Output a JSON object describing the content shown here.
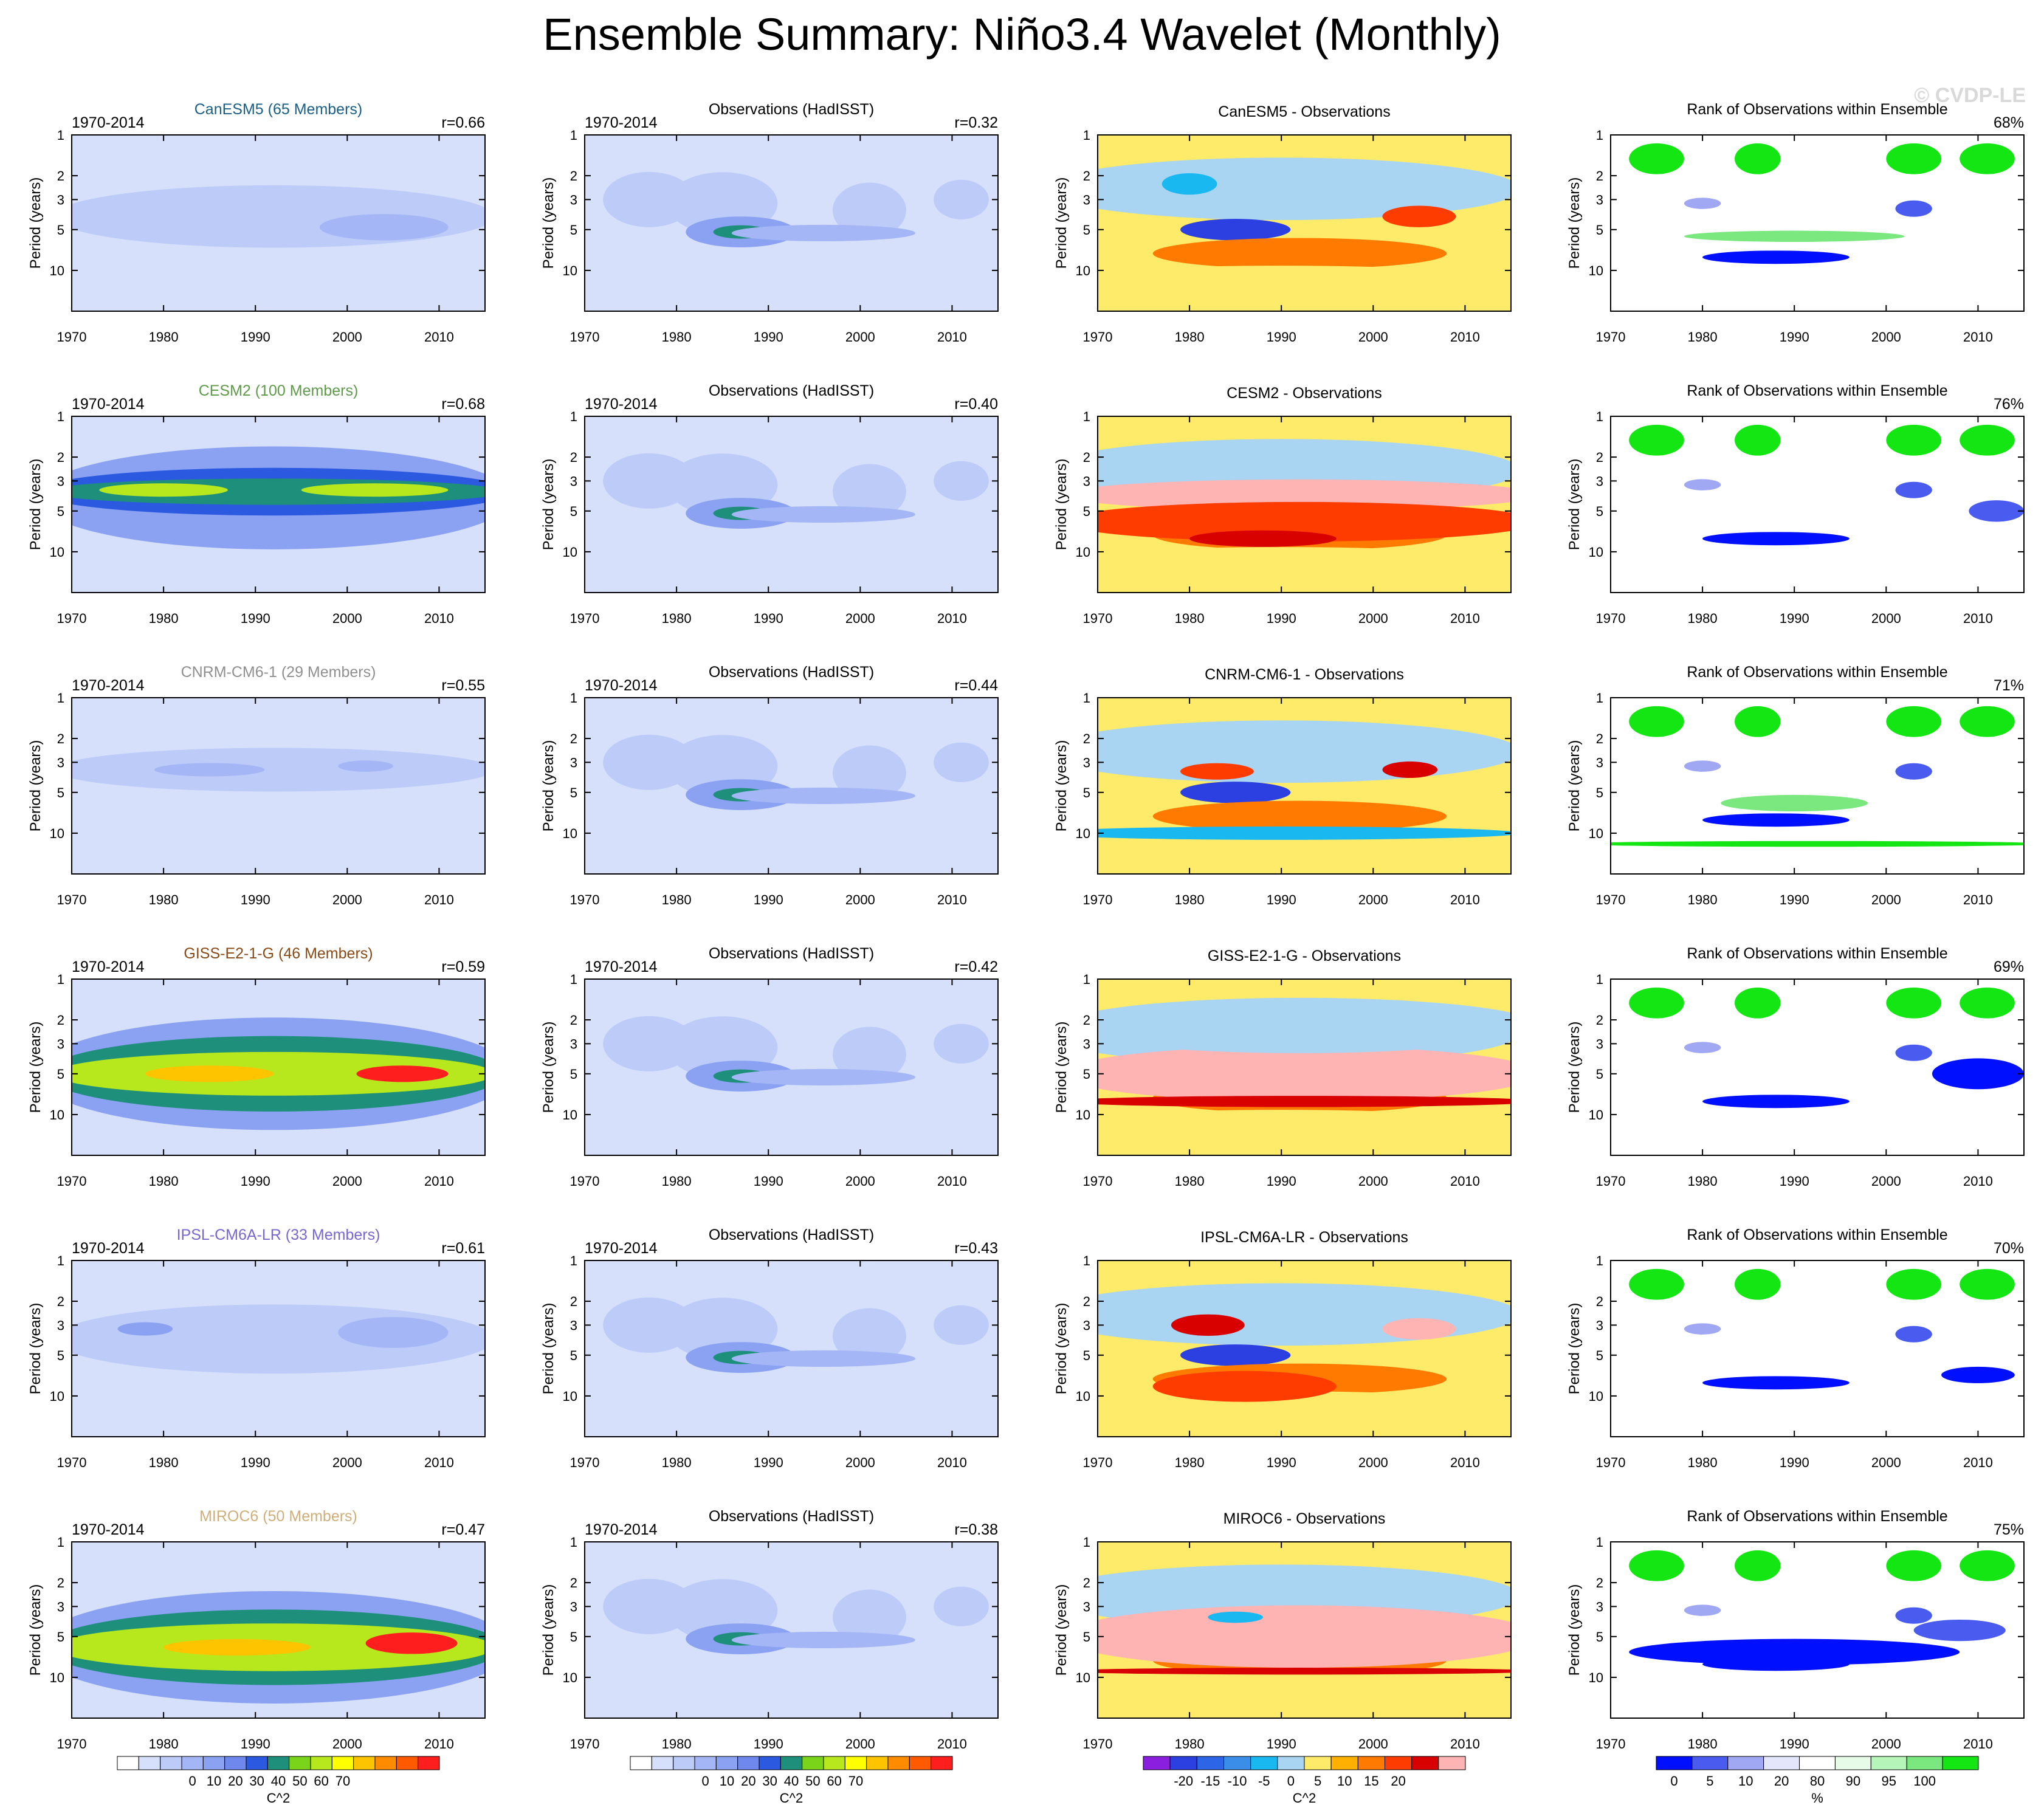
{
  "title": "Ensemble Summary: Niño3.4 Wavelet (Monthly)",
  "watermark": "© CVDP-LE",
  "period_label": "1970-2014",
  "y_axis_label": "Period (years)",
  "x_ticks": [
    "1970",
    "1980",
    "1990",
    "2000",
    "2010"
  ],
  "y_ticks": [
    "1",
    "2",
    "3",
    "5",
    "10"
  ],
  "columns": {
    "obs_title": "Observations (HadISST)",
    "diff_suffix": " - Observations",
    "rank_title": "Rank of Observations within Ensemble"
  },
  "chart_data": {
    "type": "heatmap",
    "xlim": [
      1970,
      2015
    ],
    "ylim": [
      1,
      20
    ],
    "rows": [
      {
        "model": "CanESM5",
        "members_label": "CanESM5 (65 Members)",
        "color": "#1a5f86",
        "model_r": "r=0.66",
        "obs_r": "r=0.32",
        "rank_pct": "68%"
      },
      {
        "model": "CESM2",
        "members_label": "CESM2 (100 Members)",
        "color": "#5f9a4a",
        "model_r": "r=0.68",
        "obs_r": "r=0.40",
        "rank_pct": "76%"
      },
      {
        "model": "CNRM-CM6-1",
        "members_label": "CNRM-CM6-1 (29 Members)",
        "color": "#8f8f8f",
        "model_r": "r=0.55",
        "obs_r": "r=0.44",
        "rank_pct": "71%"
      },
      {
        "model": "GISS-E2-1-G",
        "members_label": "GISS-E2-1-G (46 Members)",
        "color": "#8a4a16",
        "model_r": "r=0.59",
        "obs_r": "r=0.42",
        "rank_pct": "69%"
      },
      {
        "model": "IPSL-CM6A-LR",
        "members_label": "IPSL-CM6A-LR (33 Members)",
        "color": "#7a66d0",
        "model_r": "r=0.61",
        "obs_r": "r=0.43",
        "rank_pct": "70%"
      },
      {
        "model": "MIROC6",
        "members_label": "MIROC6 (50 Members)",
        "color": "#cfae7a",
        "model_r": "r=0.47",
        "obs_r": "r=0.38",
        "rank_pct": "75%"
      }
    ],
    "colorbars": [
      {
        "name": "power",
        "units": "C^2",
        "labels": [
          "0",
          "10",
          "20",
          "30",
          "40",
          "50",
          "60",
          "70"
        ],
        "colors": [
          "#ffffff",
          "#d6e0fb",
          "#bccbf8",
          "#a4b6f5",
          "#8ba2f2",
          "#6e88ee",
          "#2b59e0",
          "#1e8f7a",
          "#7ad41a",
          "#b7e81e",
          "#ffff00",
          "#ffc400",
          "#ff8c00",
          "#ff5a00",
          "#ff1e1e"
        ]
      },
      {
        "name": "difference",
        "units": "C^2",
        "labels": [
          "-20",
          "-15",
          "-10",
          "-5",
          "0",
          "5",
          "10",
          "15",
          "20"
        ],
        "colors": [
          "#8b1fe0",
          "#2c3fe0",
          "#2c66e6",
          "#3a8ee8",
          "#19b8f0",
          "#a9d4f2",
          "#ffeb6a",
          "#ffb000",
          "#ff7a00",
          "#ff3c00",
          "#d90000",
          "#ffb4b4"
        ]
      },
      {
        "name": "rank",
        "units": "%",
        "labels": [
          "0",
          "5",
          "10",
          "20",
          "80",
          "90",
          "95",
          "100"
        ],
        "colors": [
          "#0010ff",
          "#4a5cf0",
          "#a0a8f4",
          "#e4e6fb",
          "#ffffff",
          "#e6fbe8",
          "#b6f5b9",
          "#7ae87f",
          "#14e614"
        ]
      }
    ]
  }
}
